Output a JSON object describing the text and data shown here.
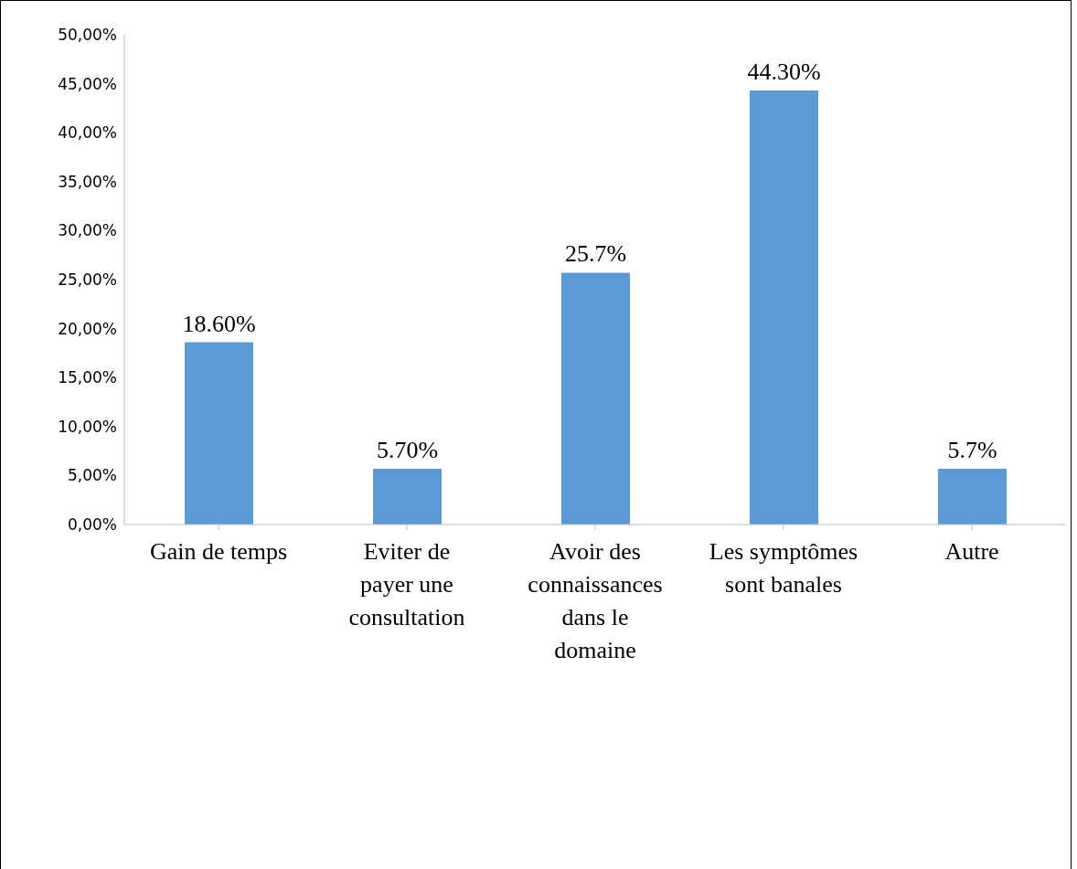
{
  "chart_data": {
    "type": "bar",
    "categories": [
      "Gain de temps",
      "Eviter de payer une consultation",
      "Avoir des connaissances dans le domaine",
      "Les symptômes sont banales",
      "Autre"
    ],
    "values": [
      18.6,
      5.7,
      25.7,
      44.3,
      5.7
    ],
    "value_labels": [
      "18.60%",
      "5.70%",
      "25.7%",
      "44.30%",
      "5.7%"
    ],
    "color": "#5b9bd5",
    "ylim": [
      0,
      50
    ],
    "yticks": [
      {
        "value": 0,
        "label": "0,00%"
      },
      {
        "value": 5,
        "label": "5,00%"
      },
      {
        "value": 10,
        "label": "10,00%"
      },
      {
        "value": 15,
        "label": "15,00%"
      },
      {
        "value": 20,
        "label": "20,00%"
      },
      {
        "value": 25,
        "label": "25,00%"
      },
      {
        "value": 30,
        "label": "30,00%"
      },
      {
        "value": 35,
        "label": "35,00%"
      },
      {
        "value": 40,
        "label": "40,00%"
      },
      {
        "value": 45,
        "label": "45,00%"
      },
      {
        "value": 50,
        "label": "50,00%"
      }
    ],
    "grid": false,
    "legend": false
  }
}
